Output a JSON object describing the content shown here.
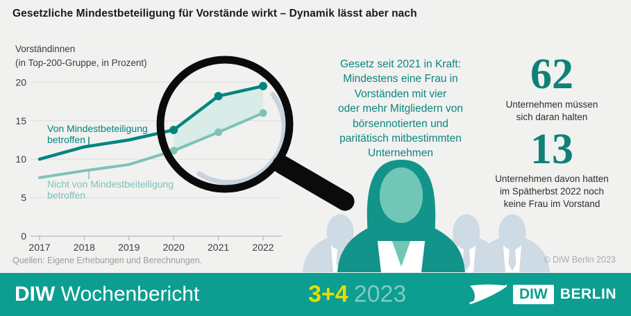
{
  "page_title": "Gesetzliche Mindestbeteiligung für Vorstände wirkt – Dynamik lässt aber nach",
  "chart": {
    "title": "Vorständinnen",
    "subtitle": "(in Top-200-Gruppe, in Prozent)",
    "source": "Quellen: Eigene Erhebungen und Berechnungen."
  },
  "chart_data": {
    "type": "line",
    "title": "Vorständinnen (in Top-200-Gruppe, in Prozent)",
    "xlabel": "",
    "ylabel": "in Prozent",
    "x": [
      2017,
      2018,
      2019,
      2020,
      2021,
      2022
    ],
    "series": [
      {
        "name": "Von Mindestbeteiligung betroffen",
        "values": [
          10.0,
          11.6,
          12.5,
          13.8,
          18.2,
          19.5
        ],
        "color": "#00857E"
      },
      {
        "name": "Nicht von Mindestbeiteiligung betroffen",
        "values": [
          7.6,
          8.5,
          9.3,
          11.1,
          13.5,
          16.0
        ],
        "color": "#7CC2B8"
      }
    ],
    "yticks": [
      0,
      5,
      10,
      15,
      20
    ],
    "ylim": [
      0,
      21
    ],
    "xlim": [
      2017,
      2022
    ],
    "markers_at": [
      2020,
      2021,
      2022
    ],
    "highlight_range": [
      2020,
      2022
    ],
    "highlight_fill": "#D9ECE7",
    "grid": true,
    "legend_position": "inline-labels"
  },
  "callout": "Gesetz seit 2021 in Kraft:\nMindestens eine Frau in\nVorständen mit vier\noder mehr Mitgliedern von\nbörsennotierten und\nparitätisch mitbestimmten\nUnternehmen",
  "stats": [
    {
      "value": "62",
      "caption": "Unternehmen müssen\nsich daran halten"
    },
    {
      "value": "13",
      "caption": "Unternehmen davon hatten\nim Spätherbst 2022 noch\nkeine Frau im Vorstand"
    }
  ],
  "copyright": "© DIW Berlin 2023",
  "footer": {
    "brand_bold": "DIW",
    "brand_regular": "Wochenbericht",
    "issue": "3+4",
    "year": "2023",
    "logo_diw": "DIW",
    "logo_berlin": "BERLIN"
  },
  "colors": {
    "banner_teal": "#0C9E90",
    "dark_line": "#00857E",
    "light_line": "#7CC2B8",
    "stat_number": "#0E8277",
    "issue_yellow": "#E4DE00",
    "silhouette": "#CEDAE4",
    "background": "#F1F1F0"
  }
}
